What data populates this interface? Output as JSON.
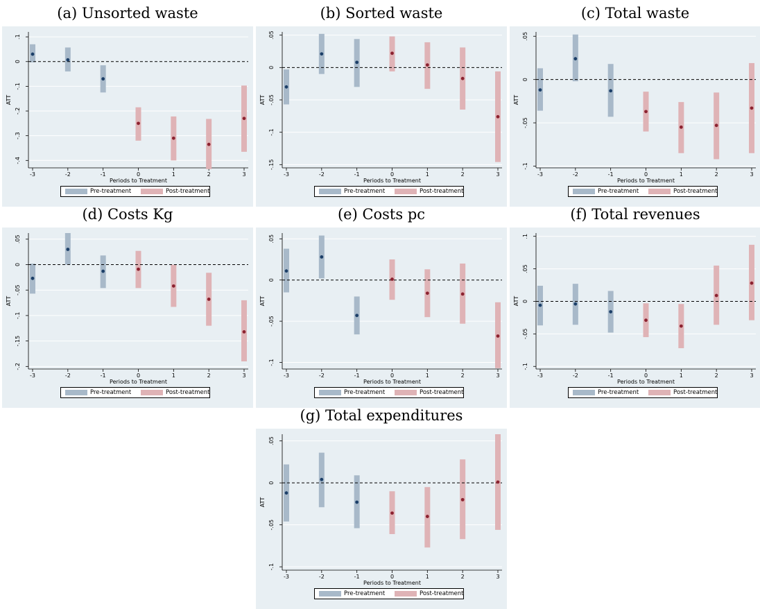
{
  "colors": {
    "background": "#e8eff3",
    "pre_bar": "#a8b9c9",
    "pre_dot": "#1c3f68",
    "post_bar": "#dfb3b6",
    "post_dot": "#8c2230",
    "grid": "#ffffff",
    "zero_line": "#000000"
  },
  "legend": {
    "pre": "Pre-treatment",
    "post": "Post-treatment"
  },
  "chart_data": [
    {
      "type": "scatter",
      "title": "(a) Unsorted waste",
      "xlabel": "Periods to Treatment",
      "ylabel": "ATT",
      "x": [
        -3,
        -2,
        -1,
        0,
        1,
        2,
        3
      ],
      "ylim": [
        -0.43,
        0.12
      ],
      "yticks": [
        0.1,
        0,
        -0.1,
        -0.2,
        -0.3,
        -0.4
      ],
      "ytick_labels": [
        ".1",
        "0",
        "-.1",
        "-.2",
        "-.3",
        "-.4"
      ],
      "series": [
        {
          "name": "Pre-treatment",
          "x": [
            -3,
            -2,
            -1
          ],
          "estimate": [
            0.03,
            0.007,
            -0.07
          ],
          "ci_low": [
            -0.003,
            -0.04,
            -0.125
          ],
          "ci_high": [
            0.07,
            0.057,
            -0.015
          ]
        },
        {
          "name": "Post-treatment",
          "x": [
            0,
            1,
            2,
            3
          ],
          "estimate": [
            -0.25,
            -0.31,
            -0.335,
            -0.23
          ],
          "ci_low": [
            -0.32,
            -0.4,
            -0.435,
            -0.365
          ],
          "ci_high": [
            -0.185,
            -0.222,
            -0.232,
            -0.097
          ]
        }
      ],
      "grid": true,
      "legend_position": "bottom"
    },
    {
      "type": "scatter",
      "title": "(b) Sorted waste",
      "xlabel": "Periods to Treatment",
      "ylabel": "ATT",
      "x": [
        -3,
        -2,
        -1,
        0,
        1,
        2,
        3
      ],
      "ylim": [
        -0.155,
        0.055
      ],
      "yticks": [
        0.05,
        0,
        -0.05,
        -0.1,
        -0.15
      ],
      "ytick_labels": [
        ".05",
        "0",
        "-.05",
        "-.1",
        "-.15"
      ],
      "series": [
        {
          "name": "Pre-treatment",
          "x": [
            -3,
            -2,
            -1
          ],
          "estimate": [
            -0.03,
            0.021,
            0.008
          ],
          "ci_low": [
            -0.057,
            -0.01,
            -0.03
          ],
          "ci_high": [
            -0.003,
            0.052,
            0.044
          ]
        },
        {
          "name": "Post-treatment",
          "x": [
            0,
            1,
            2,
            3
          ],
          "estimate": [
            0.022,
            0.004,
            -0.017,
            -0.076
          ],
          "ci_low": [
            -0.006,
            -0.033,
            -0.065,
            -0.146
          ],
          "ci_high": [
            0.048,
            0.039,
            0.031,
            -0.006
          ]
        }
      ],
      "grid": true,
      "legend_position": "bottom"
    },
    {
      "type": "scatter",
      "title": "(c) Total waste",
      "xlabel": "Periods to Treatment",
      "ylabel": "ATT",
      "x": [
        -3,
        -2,
        -1,
        0,
        1,
        2,
        3
      ],
      "ylim": [
        -0.102,
        0.055
      ],
      "yticks": [
        0.05,
        0,
        -0.05,
        -0.1
      ],
      "ytick_labels": [
        ".05",
        "0",
        "-.05",
        "-.1"
      ],
      "series": [
        {
          "name": "Pre-treatment",
          "x": [
            -3,
            -2,
            -1
          ],
          "estimate": [
            -0.012,
            0.024,
            -0.013
          ],
          "ci_low": [
            -0.036,
            -0.002,
            -0.043
          ],
          "ci_high": [
            0.013,
            0.052,
            0.018
          ]
        },
        {
          "name": "Post-treatment",
          "x": [
            0,
            1,
            2,
            3
          ],
          "estimate": [
            -0.037,
            -0.055,
            -0.053,
            -0.033
          ],
          "ci_low": [
            -0.06,
            -0.085,
            -0.092,
            -0.085
          ],
          "ci_high": [
            -0.014,
            -0.026,
            -0.015,
            0.019
          ]
        }
      ],
      "grid": true,
      "legend_position": "bottom"
    },
    {
      "type": "scatter",
      "title": "(d) Costs Kg",
      "xlabel": "Periods to Treatment",
      "ylabel": "ATT",
      "x": [
        -3,
        -2,
        -1,
        0,
        1,
        2,
        3
      ],
      "ylim": [
        -0.205,
        0.062
      ],
      "yticks": [
        0.05,
        0,
        -0.05,
        -0.1,
        -0.15,
        -0.2
      ],
      "ytick_labels": [
        ".05",
        "0",
        "-.05",
        "-.1",
        "-.15",
        "-.2"
      ],
      "series": [
        {
          "name": "Pre-treatment",
          "x": [
            -3,
            -2,
            -1
          ],
          "estimate": [
            -0.027,
            0.03,
            -0.013
          ],
          "ci_low": [
            -0.057,
            0,
            -0.046
          ],
          "ci_high": [
            0.002,
            0.062,
            0.018
          ]
        },
        {
          "name": "Post-treatment",
          "x": [
            0,
            1,
            2,
            3
          ],
          "estimate": [
            -0.009,
            -0.042,
            -0.068,
            -0.132
          ],
          "ci_low": [
            -0.046,
            -0.083,
            -0.12,
            -0.19
          ],
          "ci_high": [
            0.027,
            0,
            -0.016,
            -0.07
          ]
        }
      ],
      "grid": true,
      "legend_position": "bottom"
    },
    {
      "type": "scatter",
      "title": "(e) Costs pc",
      "xlabel": "Periods to Treatment",
      "ylabel": "ATT",
      "x": [
        -3,
        -2,
        -1,
        0,
        1,
        2,
        3
      ],
      "ylim": [
        -0.108,
        0.057
      ],
      "yticks": [
        0.05,
        0,
        -0.05,
        -0.1
      ],
      "ytick_labels": [
        ".05",
        "0",
        "-.05",
        "-.1"
      ],
      "series": [
        {
          "name": "Pre-treatment",
          "x": [
            -3,
            -2,
            -1
          ],
          "estimate": [
            0.011,
            0.028,
            -0.043
          ],
          "ci_low": [
            -0.015,
            0.002,
            -0.066
          ],
          "ci_high": [
            0.038,
            0.054,
            -0.02
          ]
        },
        {
          "name": "Post-treatment",
          "x": [
            0,
            1,
            2,
            3
          ],
          "estimate": [
            0.001,
            -0.016,
            -0.017,
            -0.068
          ],
          "ci_low": [
            -0.024,
            -0.045,
            -0.053,
            -0.107
          ],
          "ci_high": [
            0.025,
            0.013,
            0.02,
            -0.027
          ]
        }
      ],
      "grid": true,
      "legend_position": "bottom"
    },
    {
      "type": "scatter",
      "title": "(f) Total revenues",
      "xlabel": "Periods to Treatment",
      "ylabel": "ATT",
      "x": [
        -3,
        -2,
        -1,
        0,
        1,
        2,
        3
      ],
      "ylim": [
        -0.104,
        0.105
      ],
      "yticks": [
        0.1,
        0.05,
        0,
        -0.05,
        -0.1
      ],
      "ytick_labels": [
        ".1",
        ".05",
        "0",
        "-.05",
        "-.1"
      ],
      "series": [
        {
          "name": "Pre-treatment",
          "x": [
            -3,
            -2,
            -1
          ],
          "estimate": [
            -0.006,
            -0.004,
            -0.016
          ],
          "ci_low": [
            -0.037,
            -0.036,
            -0.048
          ],
          "ci_high": [
            0.024,
            0.027,
            0.016
          ]
        },
        {
          "name": "Post-treatment",
          "x": [
            0,
            1,
            2,
            3
          ],
          "estimate": [
            -0.029,
            -0.038,
            0.009,
            0.028
          ],
          "ci_low": [
            -0.055,
            -0.072,
            -0.036,
            -0.029
          ],
          "ci_high": [
            -0.003,
            -0.004,
            0.055,
            0.087
          ]
        }
      ],
      "grid": true,
      "legend_position": "bottom"
    },
    {
      "type": "scatter",
      "title": "(g) Total expenditures",
      "xlabel": "Periods to Treatment",
      "ylabel": "ATT",
      "x": [
        -3,
        -2,
        -1,
        0,
        1,
        2,
        3
      ],
      "ylim": [
        -0.104,
        0.058
      ],
      "yticks": [
        0.05,
        0,
        -0.05,
        -0.1
      ],
      "ytick_labels": [
        ".05",
        "0",
        "-.05",
        "-.1"
      ],
      "series": [
        {
          "name": "Pre-treatment",
          "x": [
            -3,
            -2,
            -1
          ],
          "estimate": [
            -0.012,
            0.004,
            -0.023
          ],
          "ci_low": [
            -0.046,
            -0.029,
            -0.054
          ],
          "ci_high": [
            0.022,
            0.036,
            0.009
          ]
        },
        {
          "name": "Post-treatment",
          "x": [
            0,
            1,
            2,
            3
          ],
          "estimate": [
            -0.036,
            -0.04,
            -0.02,
            0.001
          ],
          "ci_low": [
            -0.061,
            -0.077,
            -0.067,
            -0.056
          ],
          "ci_high": [
            -0.01,
            -0.005,
            0.028,
            0.058
          ]
        }
      ],
      "grid": true,
      "legend_position": "bottom"
    }
  ]
}
